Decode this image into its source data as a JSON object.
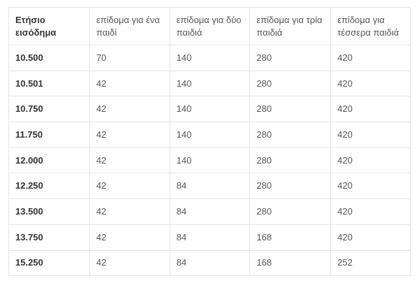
{
  "table": {
    "headers": [
      "Ετήσιο εισόδημα",
      "επίδομα για ένα παιδί",
      "επίδομα για δύο παιδιά",
      "επίδομα για τρία παιδιά",
      "επίδομα για τέσσερα παιδιά"
    ],
    "rows": [
      [
        "10.500",
        "70",
        "140",
        "280",
        "420"
      ],
      [
        "10.501",
        "42",
        "140",
        "280",
        "420"
      ],
      [
        "10.750",
        "42",
        "140",
        "280",
        "420"
      ],
      [
        "11.750",
        "42",
        "140",
        "280",
        "420"
      ],
      [
        "12.000",
        "42",
        "140",
        "280",
        "420"
      ],
      [
        "12.250",
        "42",
        "84",
        "280",
        "420"
      ],
      [
        "13.500",
        "42",
        "84",
        "280",
        "420"
      ],
      [
        "13.750",
        "42",
        "84",
        "168",
        "420"
      ],
      [
        "15.250",
        "42",
        "84",
        "168",
        "252"
      ]
    ]
  }
}
